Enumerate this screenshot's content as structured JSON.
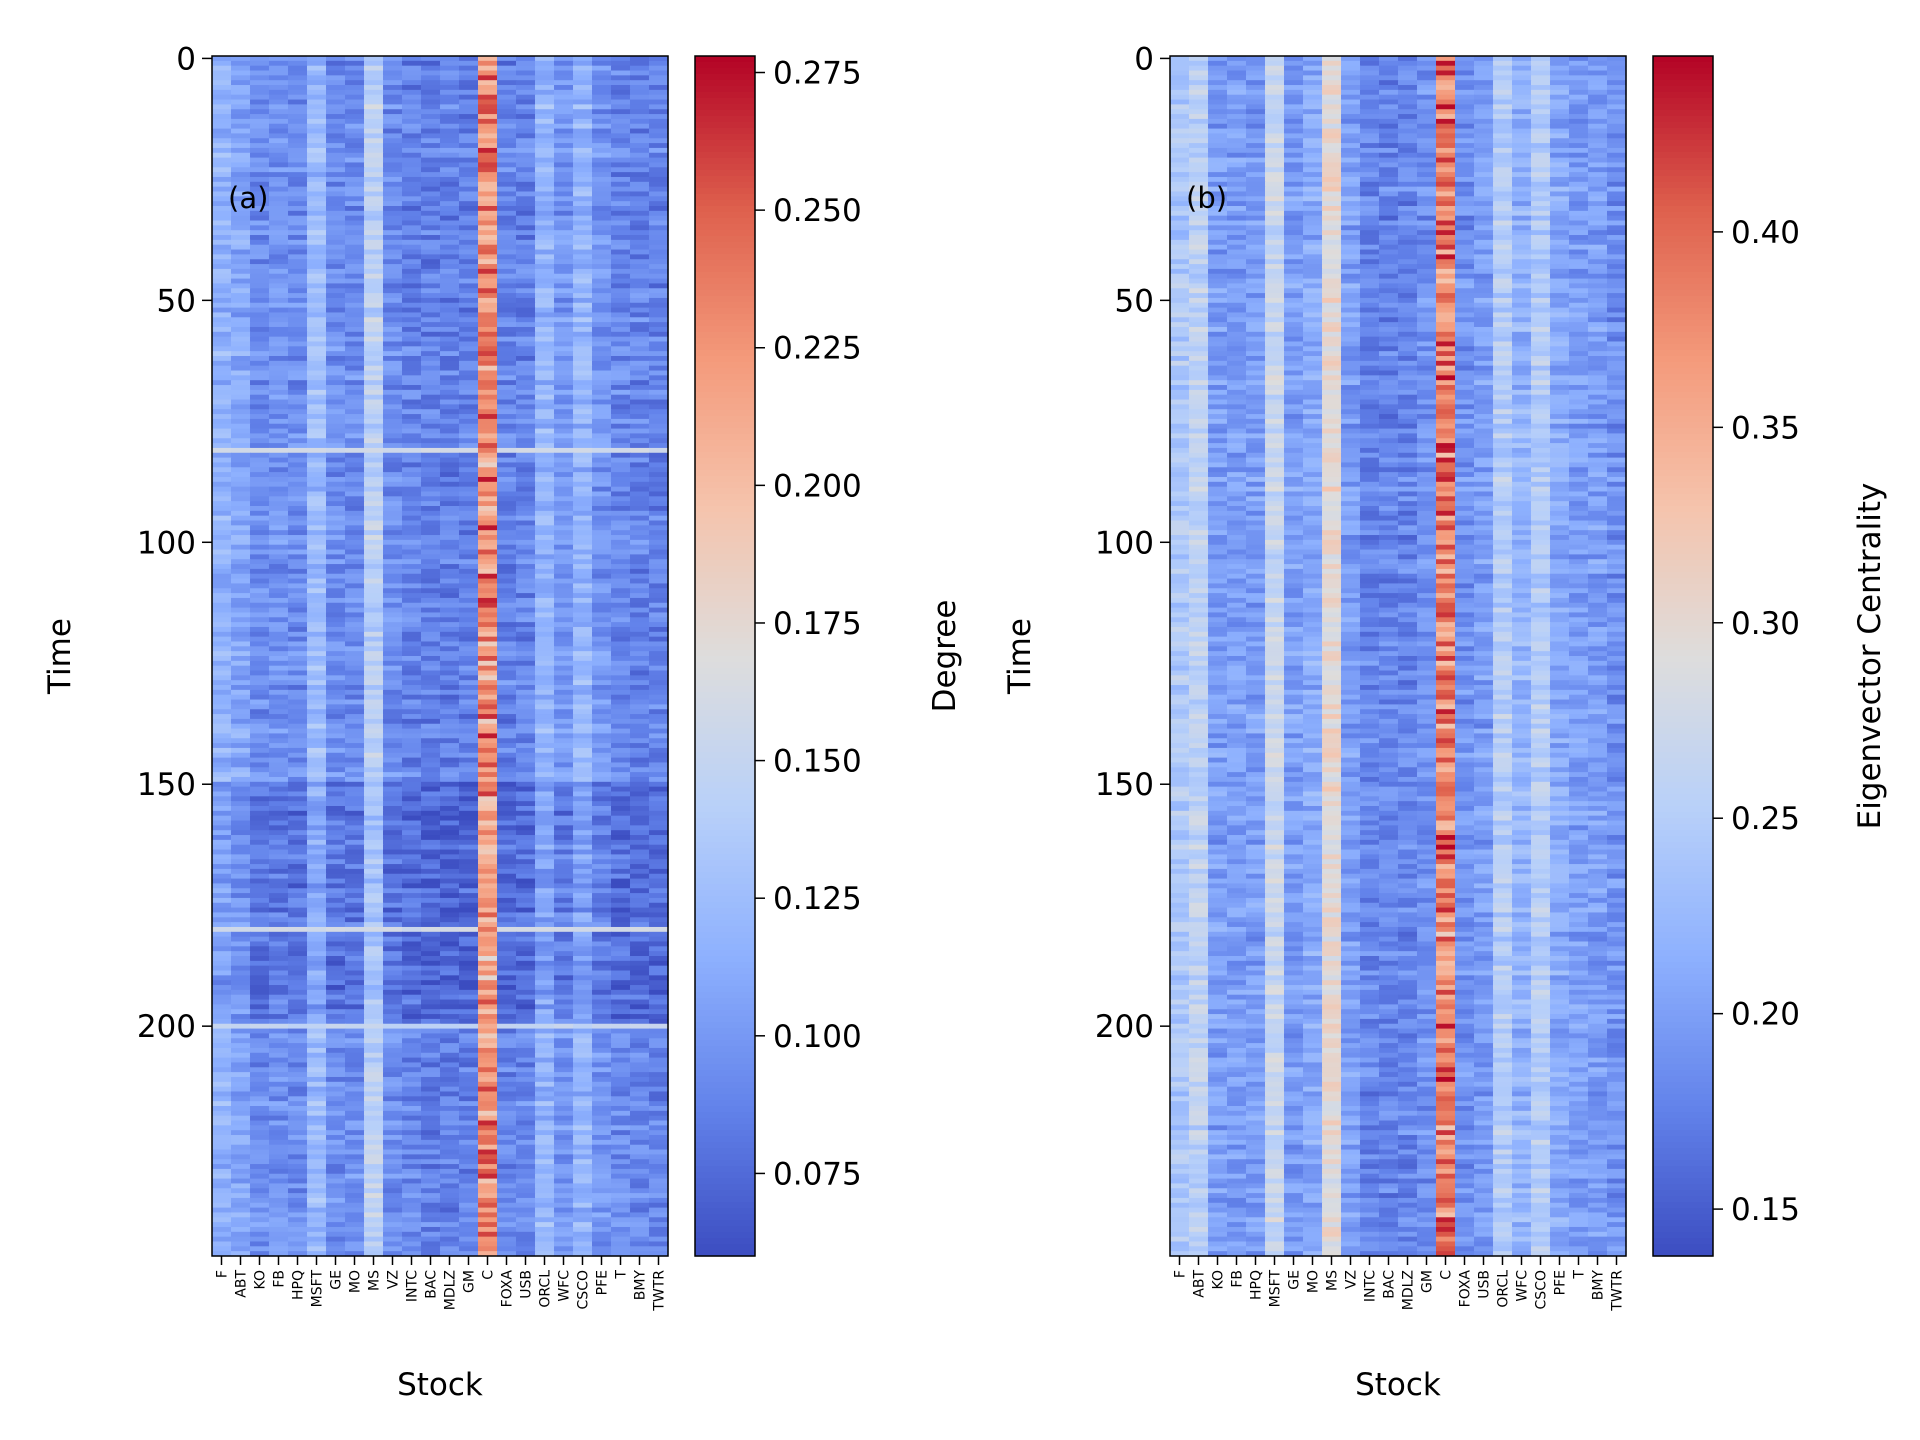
{
  "chart_data": [
    {
      "type": "heatmap",
      "panel_label": "(a)",
      "xlabel": "Stock",
      "ylabel": "Time",
      "colorbar_label": "Degree",
      "colormap": "coolwarm",
      "x_categories": [
        "F",
        "ABT",
        "KO",
        "FB",
        "HPQ",
        "MSFT",
        "GE",
        "MO",
        "MS",
        "VZ",
        "INTC",
        "BAC",
        "MDLZ",
        "GM",
        "C",
        "FOXA",
        "USB",
        "ORCL",
        "WFC",
        "CSCO",
        "PFE",
        "T",
        "BMY",
        "TWTR"
      ],
      "time_steps": 248,
      "yticks": [
        0,
        50,
        100,
        150,
        200
      ],
      "colorbar_ticks": [
        0.075,
        0.1,
        0.125,
        0.15,
        0.175,
        0.2,
        0.225,
        0.25,
        0.275
      ],
      "colorbar_tick_labels": [
        "0.075",
        "0.100",
        "0.125",
        "0.150",
        "0.175",
        "0.200",
        "0.225",
        "0.250",
        "0.275"
      ],
      "vmin": 0.06,
      "vmax": 0.278,
      "column_mean": [
        0.118,
        0.11,
        0.095,
        0.098,
        0.095,
        0.125,
        0.095,
        0.095,
        0.145,
        0.095,
        0.09,
        0.088,
        0.088,
        0.088,
        0.22,
        0.09,
        0.09,
        0.12,
        0.1,
        0.12,
        0.1,
        0.092,
        0.09,
        0.09
      ],
      "row_highlights": [
        {
          "time": 81,
          "level": 0.16
        },
        {
          "time": 180,
          "level": 0.16
        },
        {
          "time": 200,
          "level": 0.15
        }
      ],
      "dark_band": {
        "from": 150,
        "to": 200,
        "level": -0.015
      }
    },
    {
      "type": "heatmap",
      "panel_label": "(b)",
      "xlabel": "Stock",
      "ylabel": "Time",
      "colorbar_label": "Eigenvector Centrality",
      "colormap": "coolwarm",
      "x_categories": [
        "F",
        "ABT",
        "KO",
        "FB",
        "HPQ",
        "MSFT",
        "GE",
        "MO",
        "MS",
        "VZ",
        "INTC",
        "BAC",
        "MDLZ",
        "GM",
        "C",
        "FOXA",
        "USB",
        "ORCL",
        "WFC",
        "CSCO",
        "PFE",
        "T",
        "BMY",
        "TWTR"
      ],
      "time_steps": 248,
      "yticks": [
        0,
        50,
        100,
        150,
        200
      ],
      "colorbar_ticks": [
        0.15,
        0.2,
        0.25,
        0.3,
        0.35,
        0.4
      ],
      "colorbar_tick_labels": [
        "0.15",
        "0.20",
        "0.25",
        "0.30",
        "0.35",
        "0.40"
      ],
      "vmin": 0.138,
      "vmax": 0.445,
      "column_mean": [
        0.245,
        0.26,
        0.2,
        0.2,
        0.2,
        0.27,
        0.2,
        0.21,
        0.3,
        0.2,
        0.18,
        0.18,
        0.18,
        0.19,
        0.37,
        0.19,
        0.2,
        0.25,
        0.22,
        0.25,
        0.21,
        0.2,
        0.2,
        0.19
      ],
      "row_highlights": [],
      "dark_band": {
        "from": 150,
        "to": 200,
        "level": 0
      }
    }
  ]
}
